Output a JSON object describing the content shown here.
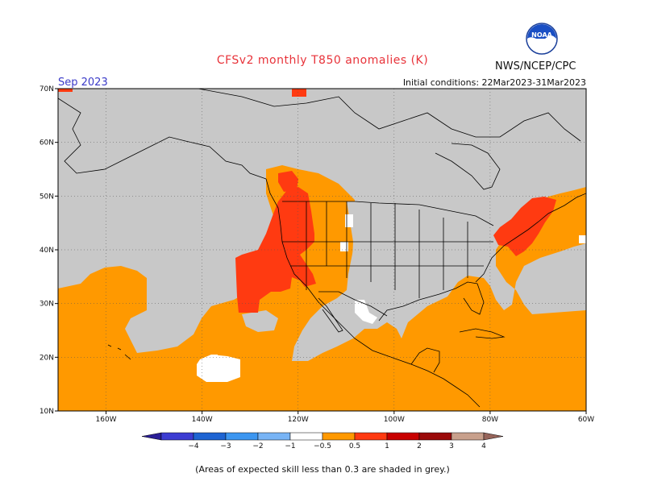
{
  "header": {
    "title": "CFSv2 monthly T850 anomalies (K)",
    "month": "Sep 2023",
    "initial_conditions": "Initial conditions: 22Mar2023-31Mar2023",
    "agency": "NWS/NCEP/CPC",
    "logo_text": "NOAA"
  },
  "map": {
    "extent": {
      "lon": [
        -170,
        -60
      ],
      "lat": [
        10,
        70
      ]
    },
    "lon_ticks": [
      {
        "lon": -160,
        "label": "160W"
      },
      {
        "lon": -140,
        "label": "140W"
      },
      {
        "lon": -120,
        "label": "120W"
      },
      {
        "lon": -100,
        "label": "100W"
      },
      {
        "lon": -80,
        "label": "80W"
      },
      {
        "lon": -60,
        "label": "60W"
      }
    ],
    "lat_ticks": [
      {
        "lat": 10,
        "label": "10N"
      },
      {
        "lat": 20,
        "label": "20N"
      },
      {
        "lat": 30,
        "label": "30N"
      },
      {
        "lat": 40,
        "label": "40N"
      },
      {
        "lat": 50,
        "label": "50N"
      },
      {
        "lat": 60,
        "label": "60N"
      },
      {
        "lat": 70,
        "label": "70N"
      }
    ],
    "colors": {
      "grey": "#c8c8c8",
      "orange": "#ff9900",
      "red": "#ff3a11",
      "white": "#ffffff",
      "coast": "#000000"
    }
  },
  "colorbar": {
    "labels": [
      "−4",
      "−3",
      "−2",
      "−1",
      "−0.5",
      "0.5",
      "1",
      "2",
      "3",
      "4"
    ],
    "colors": [
      "#2a1e96",
      "#3c3cd2",
      "#1e64d2",
      "#3c96f0",
      "#78b4f5",
      "#ffffff",
      "#ff9900",
      "#ff3a11",
      "#c80000",
      "#9b0a0a",
      "#c8a08c",
      "#96645a"
    ]
  },
  "footer": {
    "note": "(Areas of expected skill less than 0.3 are shaded in grey.)"
  }
}
